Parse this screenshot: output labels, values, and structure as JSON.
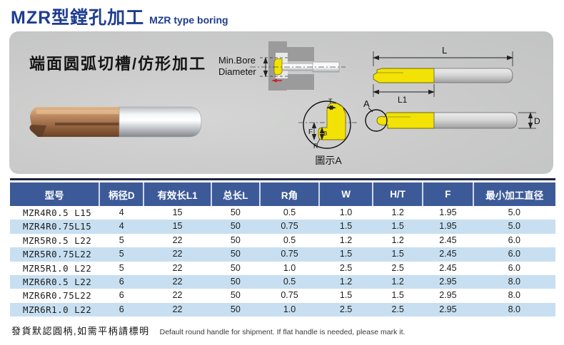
{
  "page": {
    "title_zh": "MZR型鏜孔加工",
    "title_en": "MZR type boring"
  },
  "panel": {
    "caption": "端面圆弧切槽/仿形加工",
    "min_bore_line1": "Min.Bore",
    "min_bore_line2": "Diameter",
    "detail_label": "圖示A",
    "dims": {
      "L": "L",
      "L1": "L1",
      "D": "D",
      "A": "A",
      "T": "T",
      "F": "F",
      "B": "B",
      "R": "R"
    }
  },
  "table": {
    "columns": [
      "型号",
      "柄径D",
      "有效长L1",
      "总长L",
      "R角",
      "W",
      "H/T",
      "F",
      "最小加工直径"
    ],
    "rows": [
      [
        "MZR4R0.5 L15",
        "4",
        "15",
        "50",
        "0.5",
        "1.0",
        "1.2",
        "1.95",
        "5.0"
      ],
      [
        "MZR4R0.75L15",
        "4",
        "15",
        "50",
        "0.75",
        "1.5",
        "1.5",
        "1.95",
        "5.0"
      ],
      [
        "MZR5R0.5 L22",
        "5",
        "22",
        "50",
        "0.5",
        "1.2",
        "1.2",
        "2.45",
        "6.0"
      ],
      [
        "MZR5R0.75L22",
        "5",
        "22",
        "50",
        "0.75",
        "1.5",
        "1.5",
        "2.45",
        "6.0"
      ],
      [
        "MZR5R1.0 L22",
        "5",
        "22",
        "50",
        "1.0",
        "2.5",
        "2.5",
        "2.45",
        "6.0"
      ],
      [
        "MZR6R0.5 L22",
        "6",
        "22",
        "50",
        "0.5",
        "1.2",
        "1.2",
        "2.95",
        "8.0"
      ],
      [
        "MZR6R0.75L22",
        "6",
        "22",
        "50",
        "0.75",
        "1.5",
        "1.5",
        "2.95",
        "8.0"
      ],
      [
        "MZR6R1.0 L22",
        "6",
        "22",
        "50",
        "1.0",
        "2.5",
        "2.5",
        "2.95",
        "8.0"
      ]
    ]
  },
  "footer": {
    "note_zh": "發貨默認圓柄,如需平柄請標明",
    "note_en": "Default round handle for shipment. If flat handle is needed, please mark it."
  },
  "colors": {
    "title_navy": "#1e3d8f",
    "table_header_blue": "#3d5a98",
    "row_alt_blue": "#c7dff1",
    "top_rule_navy": "#1c2340",
    "tool_yellow": "#f2e206",
    "panel_gray": "#c9cac9"
  }
}
